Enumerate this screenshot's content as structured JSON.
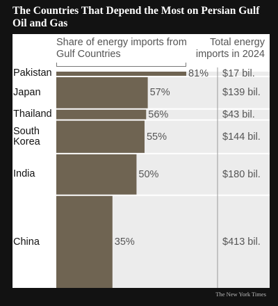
{
  "title": "The Countries That Depend the Most on Persian Gulf Oil and Gas",
  "credit": "The New York Times",
  "colors": {
    "bar": "#6f6452",
    "track": "#ececec",
    "panel": "#ffffff",
    "background": "#121212",
    "separator": "#ffffff"
  },
  "chart_data": {
    "type": "bar",
    "orientation": "horizontal",
    "variable_width": true,
    "share_header": "Share of energy imports from Gulf Countries",
    "total_header": "Total energy imports in 2024",
    "categories": [
      "Pakistan",
      "Japan",
      "Thailand",
      "South Korea",
      "India",
      "China"
    ],
    "category_lines": [
      [
        "Pakistan"
      ],
      [
        "Japan"
      ],
      [
        "Thailand"
      ],
      [
        "South",
        "Korea"
      ],
      [
        "India"
      ],
      [
        "China"
      ]
    ],
    "share_percent": [
      81,
      57,
      56,
      55,
      50,
      35
    ],
    "share_labels": [
      "81%",
      "57%",
      "56%",
      "55%",
      "50%",
      "35%"
    ],
    "total_imports_billion_usd": [
      17,
      139,
      43,
      144,
      180,
      413
    ],
    "total_labels": [
      "$17 bil.",
      "$139 bil.",
      "$43 bil.",
      "$144 bil.",
      "$180 bil.",
      "$413 bil."
    ],
    "xlim": [
      0,
      100
    ]
  }
}
